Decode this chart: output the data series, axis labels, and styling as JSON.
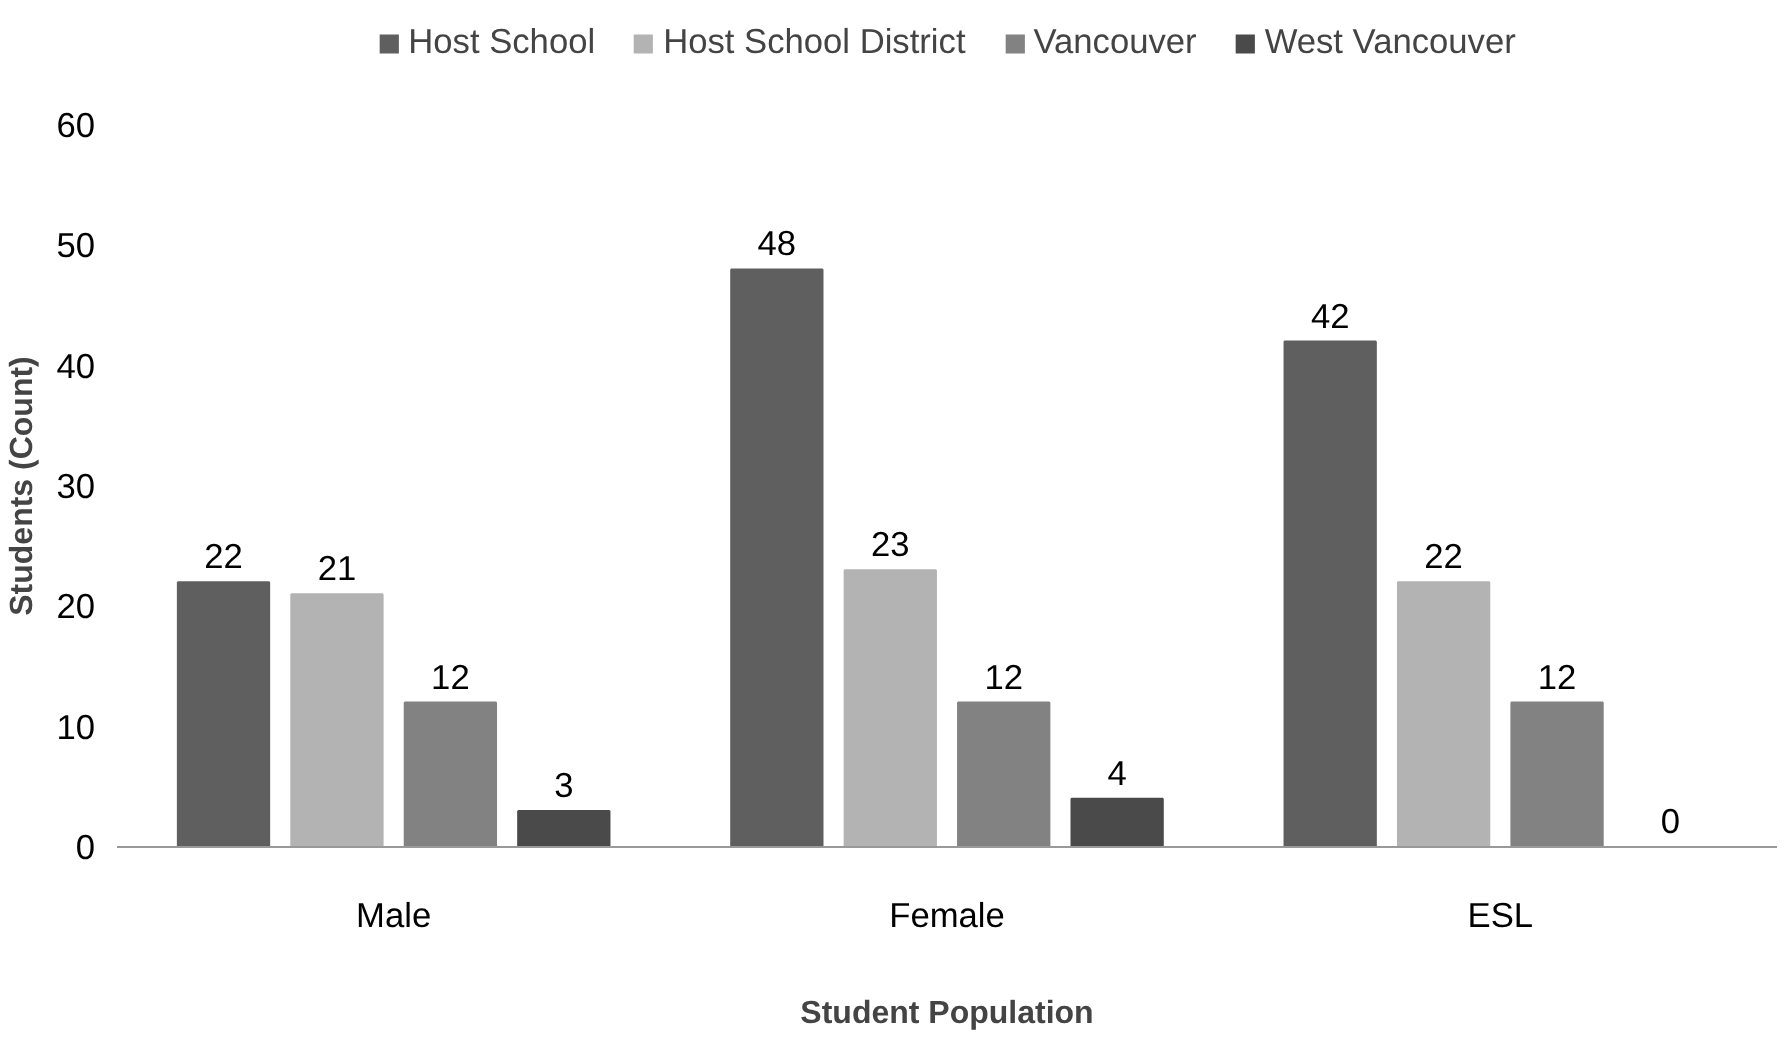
{
  "chart_data": {
    "type": "bar",
    "xlabel": "Student Population",
    "ylabel": "Students (Count)",
    "categories": [
      "Male",
      "Female",
      "ESL"
    ],
    "series": [
      {
        "name": "Host School",
        "color": "#5f5f5f",
        "values": [
          22,
          48,
          42
        ]
      },
      {
        "name": "Host School District",
        "color": "#b3b3b3",
        "values": [
          21,
          23,
          22
        ]
      },
      {
        "name": "Vancouver",
        "color": "#828282",
        "values": [
          12,
          12,
          12
        ]
      },
      {
        "name": "West Vancouver",
        "color": "#4a4a4a",
        "values": [
          3,
          4,
          0
        ]
      }
    ],
    "ylim": [
      0,
      60
    ],
    "yticks": [
      0,
      10,
      20,
      30,
      40,
      50,
      60
    ],
    "grid": false,
    "legend": "top",
    "data_labels": true
  }
}
